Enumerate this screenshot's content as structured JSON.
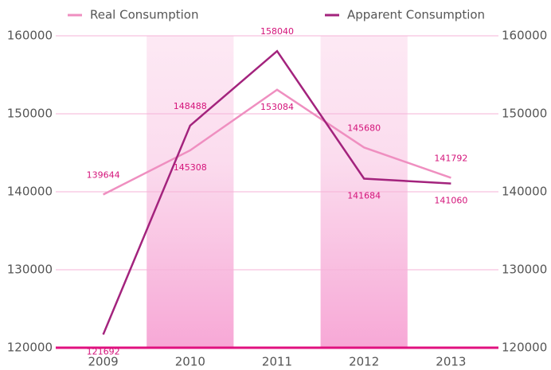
{
  "chart_data": {
    "type": "line",
    "categories": [
      "2009",
      "2010",
      "2011",
      "2012",
      "2013"
    ],
    "series": [
      {
        "name": "Real Consumption",
        "color": "#ef8fc0",
        "values": [
          139644,
          145308,
          153084,
          145680,
          141792
        ]
      },
      {
        "name": "Apparent Consumption",
        "color": "#a3237d",
        "values": [
          121692,
          148488,
          158040,
          141684,
          141060
        ]
      }
    ],
    "ylim": [
      120000,
      160000
    ],
    "yticks": [
      120000,
      130000,
      140000,
      150000,
      160000
    ],
    "y2lim": [
      120000,
      160000
    ],
    "y2ticks": [
      120000,
      130000,
      140000,
      150000,
      160000
    ],
    "grid": true,
    "legend": "top"
  }
}
